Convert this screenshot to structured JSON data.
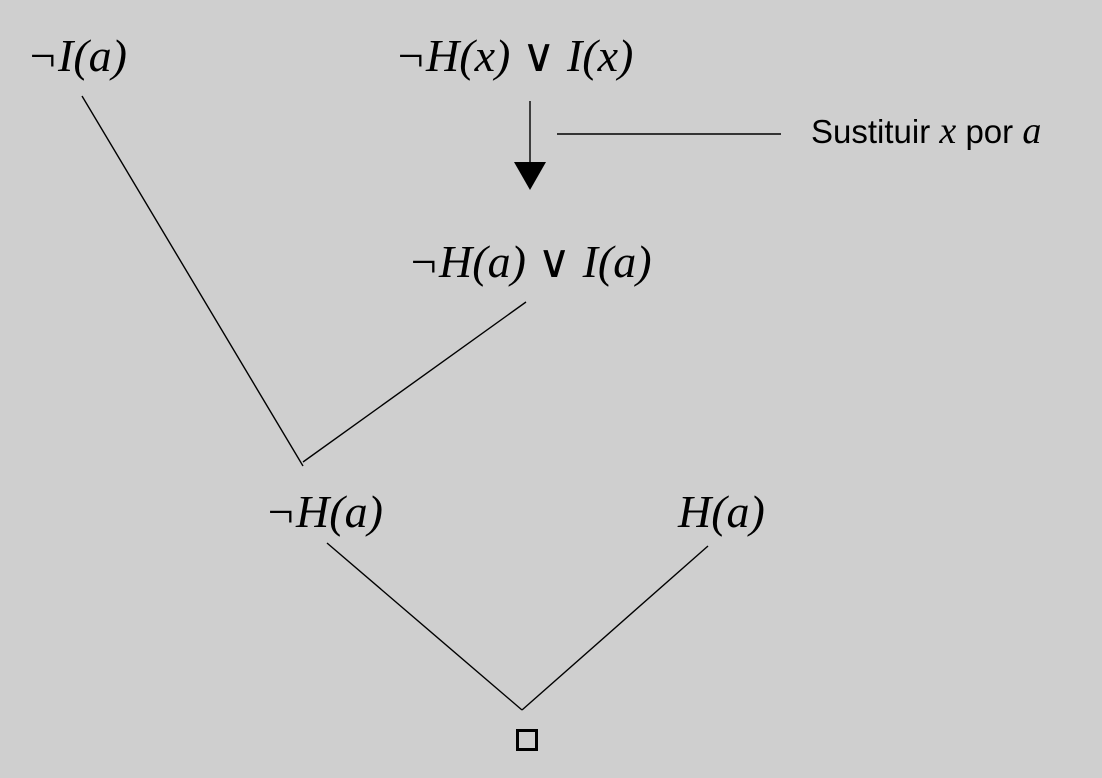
{
  "formulas": {
    "not_i_a": "¬I(a)",
    "not_h_x_or_i_x": "¬H(x) ∨ I(x)",
    "not_h_a_or_i_a": "¬H(a) ∨ I(a)",
    "not_h_a": "¬H(a)",
    "h_a": "H(a)"
  },
  "substitution_note": {
    "prefix": "Sustituir",
    "var1": "x",
    "middle": "por",
    "var2": "a"
  },
  "empty_clause_symbol": "□",
  "colors": {
    "background": "#cfcfcf",
    "ink": "#000000"
  }
}
